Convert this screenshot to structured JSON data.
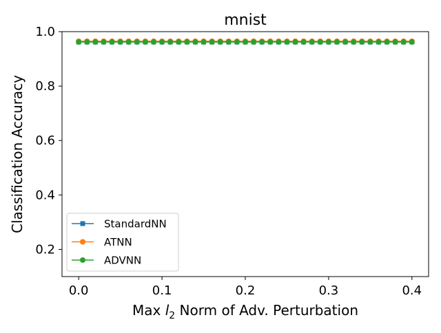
{
  "chart_data": {
    "type": "line",
    "title": "mnist",
    "xlabel_main": "Max",
    "xlabel_var": "l",
    "xlabel_sub": "2",
    "xlabel_rest": " Norm of Adv. Perturbation",
    "ylabel": "Classification Accuracy",
    "xlim": [
      -0.02,
      0.42
    ],
    "ylim": [
      0.1,
      1.0
    ],
    "x_ticks": [
      0.0,
      0.1,
      0.2,
      0.3,
      0.4
    ],
    "x_tick_labels": [
      "0.0",
      "0.1",
      "0.2",
      "0.3",
      "0.4"
    ],
    "y_ticks": [
      0.2,
      0.4,
      0.6,
      0.8,
      1.0
    ],
    "y_tick_labels": [
      "0.2",
      "0.4",
      "0.6",
      "0.8",
      "1.0"
    ],
    "grid": false,
    "legend_position": "lower-left",
    "x": [
      0.0,
      0.01,
      0.02,
      0.03,
      0.04,
      0.05,
      0.06,
      0.07,
      0.08,
      0.09,
      0.1,
      0.11,
      0.12,
      0.13,
      0.14,
      0.15,
      0.16,
      0.17,
      0.18,
      0.19,
      0.2,
      0.21,
      0.22,
      0.23,
      0.24,
      0.25,
      0.26,
      0.27,
      0.28,
      0.29,
      0.3,
      0.31,
      0.32,
      0.33,
      0.34,
      0.35,
      0.36,
      0.37,
      0.38,
      0.39,
      0.4
    ],
    "series": [
      {
        "name": "StandardNN",
        "color": "#1f77b4",
        "marker": "square",
        "value": 0.962
      },
      {
        "name": "ATNN",
        "color": "#ff7f0e",
        "marker": "circle",
        "value": 0.965
      },
      {
        "name": "ADVNN",
        "color": "#2ca02c",
        "marker": "circle",
        "value": 0.962
      }
    ]
  }
}
